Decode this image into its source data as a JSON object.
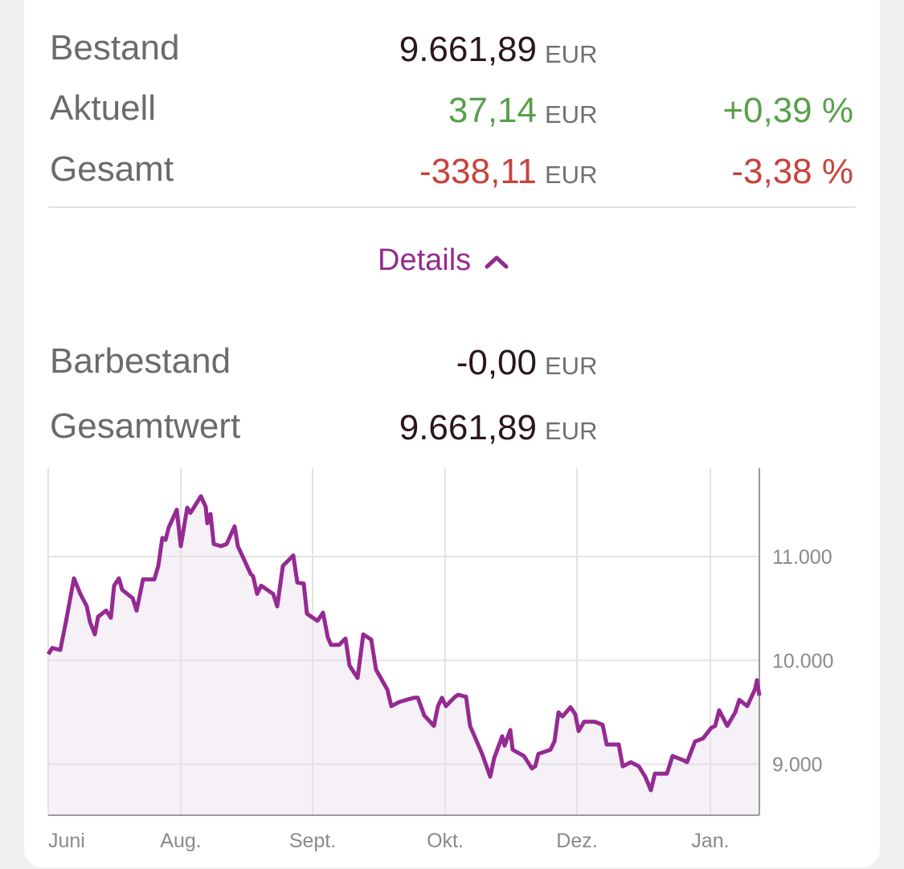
{
  "summary": {
    "rows": [
      {
        "label": "Bestand",
        "value": "9.661,89",
        "unit": "EUR"
      },
      {
        "label": "Aktuell",
        "value": "37,14",
        "unit": "EUR",
        "percent": "+0,39 %"
      },
      {
        "label": "Gesamt",
        "value": "-338,11",
        "unit": "EUR",
        "percent": "-3,38 %"
      }
    ]
  },
  "details_toggle": "Details",
  "details": {
    "rows": [
      {
        "label": "Barbestand",
        "value": "-0,00",
        "unit": "EUR"
      },
      {
        "label": "Gesamtwert",
        "value": "9.661,89",
        "unit": "EUR"
      }
    ]
  },
  "chart_data": {
    "type": "line",
    "color": "#952a92",
    "fill": "#f6f0f7",
    "grid": true,
    "x": [
      0,
      0.5,
      1.5,
      2.2,
      3.2,
      4.0,
      4.8,
      5.2,
      5.8,
      6.2,
      7.2,
      7.8,
      8.2,
      8.8,
      9.2,
      10.5,
      11.0,
      11.8,
      12.5,
      13.2,
      13.7,
      14.2,
      14.6,
      15.0,
      16.0,
      16.5,
      17.3,
      17.7,
      19.0,
      19.6,
      19.8,
      20.2,
      20.6,
      21.5,
      22.2,
      23.2,
      23.6,
      24.5,
      25.2,
      25.5,
      26.0,
      26.5,
      28.0,
      28.5,
      29.2,
      30.5,
      31.0,
      31.8,
      32.2,
      33.5,
      34.2,
      34.8,
      35.2,
      36.2,
      37.0,
      37.5,
      38.5,
      39.2,
      40.2,
      40.8,
      42.2,
      42.7,
      43.7,
      45.5,
      46.0,
      46.8,
      48.0,
      48.5,
      49.0,
      49.5,
      50.5,
      51.0,
      52.0,
      52.5,
      54.0,
      55.0,
      55.5,
      56.5,
      56.8,
      57.5,
      57.8,
      59.2,
      60.2,
      60.6,
      61.0,
      62.5,
      63.0,
      63.5,
      64.0,
      65.0,
      65.6,
      66.0,
      66.7,
      68.0,
      69.0,
      69.5,
      71.0,
      71.5,
      72.5,
      73.5,
      74.3,
      75.0,
      75.5,
      77.0,
      77.7,
      79.0,
      79.5,
      80.5,
      81.5,
      82.5,
      83.0,
      83.5,
      84.5,
      85.5,
      86.0,
      87.0,
      88.0,
      88.2,
      88.5
    ],
    "values": [
      10060,
      10120,
      10100,
      10370,
      10790,
      10640,
      10520,
      10370,
      10250,
      10420,
      10480,
      10410,
      10720,
      10790,
      10680,
      10600,
      10480,
      10780,
      10780,
      10780,
      10910,
      11180,
      11160,
      11280,
      11450,
      11100,
      11470,
      11420,
      11580,
      11480,
      11320,
      11410,
      11120,
      11100,
      11120,
      11290,
      11100,
      10950,
      10830,
      10810,
      10640,
      10720,
      10640,
      10520,
      10910,
      11010,
      10750,
      10740,
      10450,
      10380,
      10460,
      10220,
      10150,
      10150,
      10210,
      9950,
      9830,
      10250,
      10200,
      9910,
      9720,
      9560,
      9600,
      9640,
      9640,
      9470,
      9370,
      9560,
      9640,
      9560,
      9640,
      9670,
      9650,
      9370,
      9100,
      8880,
      9060,
      9270,
      9180,
      9330,
      9140,
      9080,
      8960,
      8980,
      9100,
      9140,
      9220,
      9500,
      9460,
      9550,
      9480,
      9320,
      9410,
      9410,
      9380,
      9190,
      9190,
      8980,
      9020,
      8980,
      8880,
      8750,
      8910,
      8910,
      9080,
      9040,
      9020,
      9220,
      9250,
      9350,
      9370,
      9520,
      9370,
      9500,
      9620,
      9560,
      9730,
      9810,
      9660
    ],
    "xlim": [
      0,
      88.5
    ],
    "xticks": [
      {
        "value": 0,
        "label": "Juni"
      },
      {
        "value": 16.5,
        "label": "Aug."
      },
      {
        "value": 32.9,
        "label": "Sept."
      },
      {
        "value": 49.4,
        "label": "Okt."
      },
      {
        "value": 65.8,
        "label": "Dez."
      },
      {
        "value": 82.4,
        "label": "Jan."
      }
    ],
    "ylim": [
      8510,
      11850
    ],
    "yticks": [
      {
        "value": 9000,
        "label": "9.000"
      },
      {
        "value": 10000,
        "label": "10.000"
      },
      {
        "value": 11000,
        "label": "11.000"
      }
    ]
  }
}
